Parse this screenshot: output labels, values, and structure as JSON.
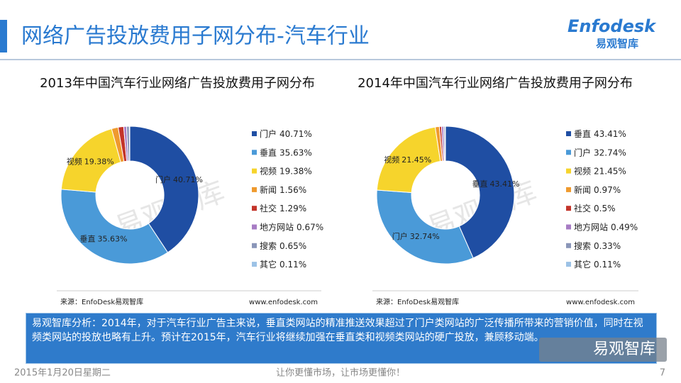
{
  "header": {
    "title": "网络广告投放费用子网分布-汽车行业",
    "logo": "Enfodesk",
    "logo_sub": "易观智库"
  },
  "chart_data": [
    {
      "type": "pie",
      "donut": true,
      "title": "2013年中国汽车行业网络广告投放费用子网分布",
      "categories": [
        "门户",
        "垂直",
        "视频",
        "新闻",
        "社交",
        "地方网站",
        "搜索",
        "其它"
      ],
      "values": [
        40.71,
        35.63,
        19.38,
        1.56,
        1.29,
        0.67,
        0.65,
        0.11
      ],
      "value_labels": [
        "40.71%",
        "35.63%",
        "19.38%",
        "1.56%",
        "1.29%",
        "0.67%",
        "0.65%",
        "0.11%"
      ],
      "colors": [
        "#1f4ea3",
        "#4a9ad8",
        "#f6d42c",
        "#ef9a2e",
        "#c3342a",
        "#a77cc4",
        "#8a96b8",
        "#9cc2e6"
      ],
      "source": "来源：EnfoDesk易观智库",
      "website": "www.enfodesk.com"
    },
    {
      "type": "pie",
      "donut": true,
      "title": "2014年中国汽车行业网络广告投放费用子网分布",
      "categories": [
        "垂直",
        "门户",
        "视频",
        "新闻",
        "社交",
        "地方网站",
        "搜索",
        "其它"
      ],
      "values": [
        43.41,
        32.74,
        21.45,
        0.97,
        0.5,
        0.49,
        0.33,
        0.11
      ],
      "value_labels": [
        "43.41%",
        "32.74%",
        "21.45%",
        "0.97%",
        "0.5%",
        "0.49%",
        "0.33%",
        "0.11%"
      ],
      "colors": [
        "#1f4ea3",
        "#4a9ad8",
        "#f6d42c",
        "#ef9a2e",
        "#c3342a",
        "#a77cc4",
        "#8a96b8",
        "#9cc2e6"
      ],
      "source": "来源：EnfoDesk易观智库",
      "website": "www.enfodesk.com"
    }
  ],
  "analysis": "易观智库分析：2014年，对于汽车行业广告主来说，垂直类网站的精准推送效果超过了门户类网站的广泛传播所带来的营销价值，同时在视频类网站的投放也略有上升。预计在2015年，汽车行业将继续加强在垂直类和视频类网站的硬广投放，兼顾移动端。",
  "watermark": "易观智库",
  "badge": "易观智库",
  "footer": {
    "date": "2015年1月20日星期二",
    "slogan": "让你更懂市场，让市场更懂你！",
    "page": "7"
  }
}
